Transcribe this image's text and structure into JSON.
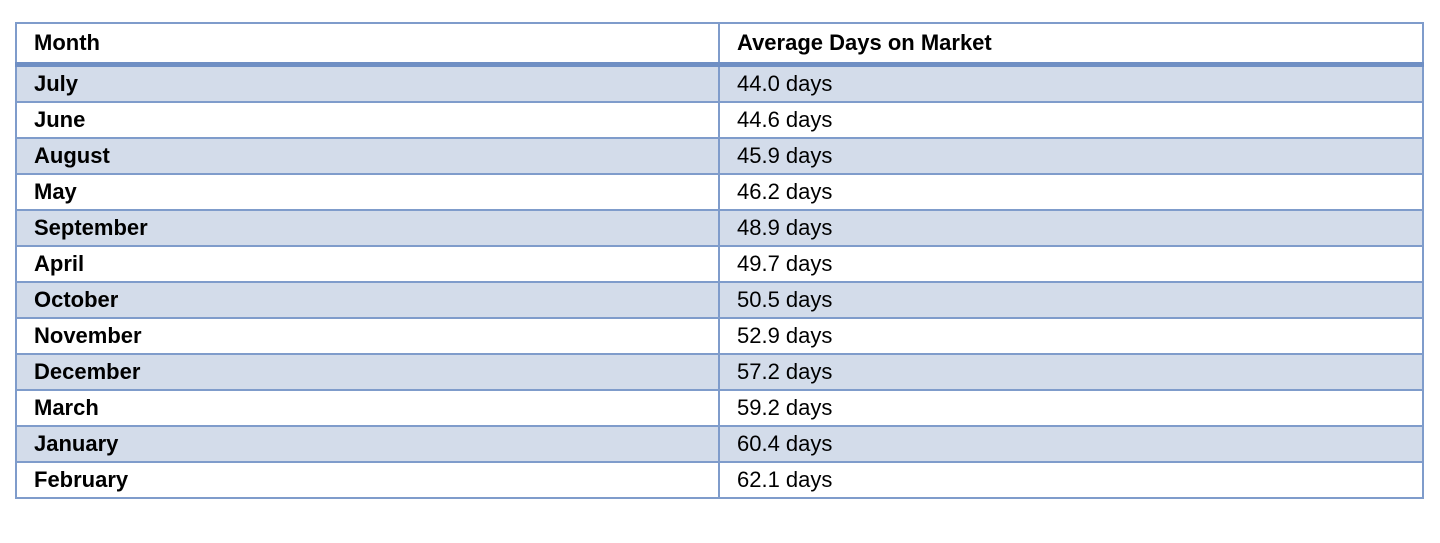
{
  "table": {
    "header": [
      "Month",
      "Average Days on Market"
    ],
    "rows": [
      [
        "July",
        "44.0 days"
      ],
      [
        "June",
        "44.6 days"
      ],
      [
        "August",
        "45.9 days"
      ],
      [
        "May",
        "46.2 days"
      ],
      [
        "September",
        "48.9 days"
      ],
      [
        "April",
        "49.7 days"
      ],
      [
        "October",
        "50.5 days"
      ],
      [
        "November",
        "52.9 days"
      ],
      [
        "December",
        "57.2 days"
      ],
      [
        "March",
        "59.2 days"
      ],
      [
        "January",
        "60.4 days"
      ],
      [
        "February",
        "62.1 days"
      ]
    ]
  }
}
